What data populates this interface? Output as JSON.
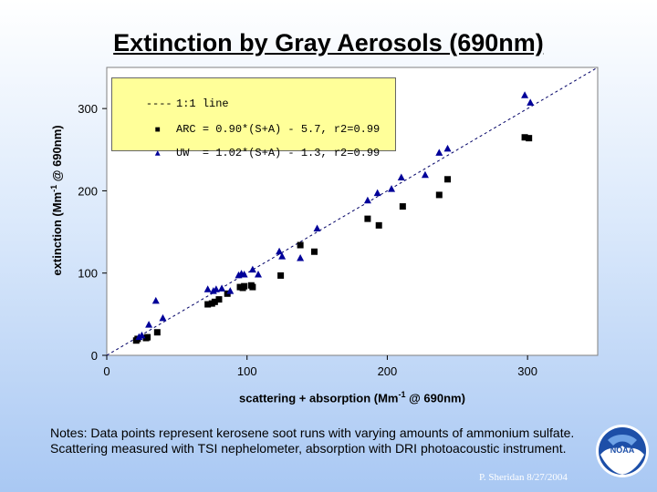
{
  "title": "Extinction by Gray Aerosols (690nm)",
  "chart_data": {
    "type": "scatter",
    "title": "Extinction by Gray Aerosols (690nm)",
    "xlabel_main": "scattering + absorption (Mm",
    "xlabel_sup": "-1",
    "xlabel_tail": " @ 690nm)",
    "ylabel_main": "extinction (Mm",
    "ylabel_sup": "-1",
    "ylabel_tail": " @ 690nm)",
    "xlim": [
      0,
      350
    ],
    "ylim": [
      0,
      350
    ],
    "xticks": [
      0,
      100,
      200,
      300
    ],
    "yticks": [
      0,
      100,
      200,
      300
    ],
    "grid": false,
    "legend_position": "top-left",
    "reference_line": {
      "label": "1:1 line",
      "slope": 1,
      "intercept": 0,
      "style": "dashed"
    },
    "series": [
      {
        "name": "ARC = 0.90*(S+A) - 5.7, r2=0.99",
        "marker": "square",
        "color": "#000000",
        "points": [
          [
            21,
            18
          ],
          [
            22,
            20
          ],
          [
            28,
            21
          ],
          [
            29,
            22
          ],
          [
            36,
            28
          ],
          [
            72,
            62
          ],
          [
            75,
            63
          ],
          [
            77,
            65
          ],
          [
            80,
            68
          ],
          [
            86,
            75
          ],
          [
            95,
            83
          ],
          [
            97,
            82
          ],
          [
            98,
            84
          ],
          [
            103,
            85
          ],
          [
            104,
            83
          ],
          [
            124,
            97
          ],
          [
            138,
            134
          ],
          [
            148,
            126
          ],
          [
            186,
            166
          ],
          [
            194,
            158
          ],
          [
            211,
            181
          ],
          [
            237,
            195
          ],
          [
            243,
            214
          ],
          [
            298,
            265
          ],
          [
            301,
            264
          ]
        ]
      },
      {
        "name": "UW  = 1.02*(S+A) - 1.3, r2=0.99",
        "marker": "triangle",
        "color": "#000099",
        "points": [
          [
            23,
            22
          ],
          [
            25,
            24
          ],
          [
            30,
            37
          ],
          [
            35,
            66
          ],
          [
            40,
            45
          ],
          [
            72,
            80
          ],
          [
            76,
            78
          ],
          [
            78,
            80
          ],
          [
            82,
            81
          ],
          [
            88,
            78
          ],
          [
            94,
            97
          ],
          [
            96,
            99
          ],
          [
            98,
            98
          ],
          [
            104,
            104
          ],
          [
            108,
            98
          ],
          [
            123,
            126
          ],
          [
            125,
            120
          ],
          [
            138,
            118
          ],
          [
            150,
            154
          ],
          [
            186,
            188
          ],
          [
            193,
            197
          ],
          [
            203,
            202
          ],
          [
            210,
            216
          ],
          [
            227,
            219
          ],
          [
            237,
            246
          ],
          [
            243,
            251
          ],
          [
            298,
            316
          ],
          [
            302,
            307
          ]
        ]
      }
    ]
  },
  "legend": {
    "line_sym": "----",
    "line_label": "1:1 line",
    "arc_sym": "■",
    "arc_label": "ARC = 0.90*(S+A) - 5.7, r2=0.99",
    "uw_sym": "▲",
    "uw_label": "UW  = 1.02*(S+A) - 1.3, r2=0.99"
  },
  "notes": "Notes:  Data points represent kerosene soot runs with varying amounts of ammonium sulfate.  Scattering measured with TSI nephelometer, absorption with DRI photoacoustic instrument.",
  "credit": "P. Sheridan  8/27/2004",
  "logo_text": "NOAA"
}
